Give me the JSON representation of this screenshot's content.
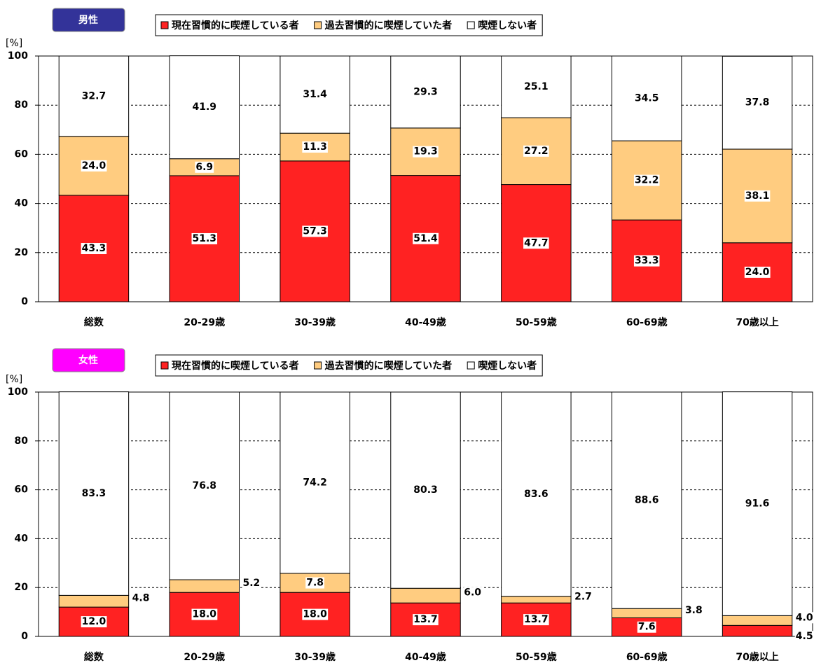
{
  "chart_data": [
    {
      "type": "bar",
      "stacked": true,
      "title": "男性",
      "title_color": "#333399",
      "ylabel": "[%]",
      "categories": [
        "総数",
        "20-29歳",
        "30-39歳",
        "40-49歳",
        "50-59歳",
        "60-69歳",
        "70歳以上"
      ],
      "series": [
        {
          "name": "現在習慣的に喫煙している者",
          "color": "#ff2222",
          "values": [
            43.3,
            51.3,
            57.3,
            51.4,
            47.7,
            33.3,
            24.0
          ],
          "value_labels": [
            "43.3",
            "51.3",
            "57.3",
            "51.4",
            "47.7",
            "33.3",
            "24.0"
          ]
        },
        {
          "name": "過去習慣的に喫煙していた者",
          "color": "#ffcc80",
          "values": [
            24.0,
            6.9,
            11.3,
            19.3,
            27.2,
            32.2,
            38.1
          ],
          "value_labels": [
            "24.0",
            "6.9",
            "11.3",
            "19.3",
            "27.2",
            "32.2",
            "38.1"
          ]
        },
        {
          "name": "喫煙しない者",
          "color": "#ffffff",
          "values": [
            32.7,
            41.9,
            31.4,
            29.3,
            25.1,
            34.5,
            37.8
          ],
          "value_labels": [
            "32.7",
            "41.9",
            "31.4",
            "29.3",
            "25.1",
            "34.5",
            "37.8"
          ]
        }
      ],
      "ylim": [
        0,
        100
      ],
      "yticks": [
        0,
        20,
        40,
        60,
        80,
        100
      ],
      "grid": true
    },
    {
      "type": "bar",
      "stacked": true,
      "title": "女性",
      "title_color": "#ff00ff",
      "ylabel": "[%]",
      "categories": [
        "総数",
        "20-29歳",
        "30-39歳",
        "40-49歳",
        "50-59歳",
        "60-69歳",
        "70歳以上"
      ],
      "series": [
        {
          "name": "現在習慣的に喫煙している者",
          "color": "#ff2222",
          "values": [
            12.0,
            18.0,
            18.0,
            13.7,
            13.7,
            7.6,
            4.5
          ],
          "value_labels": [
            "12.0",
            "18.0",
            "18.0",
            "13.7",
            "13.7",
            "7.6",
            "4.5"
          ]
        },
        {
          "name": "過去習慣的に喫煙していた者",
          "color": "#ffcc80",
          "values": [
            4.8,
            5.2,
            7.8,
            6.0,
            2.7,
            3.8,
            4.0
          ],
          "value_labels": [
            "4.8",
            "5.2",
            "7.8",
            "6.0",
            "2.7",
            "3.8",
            "4.0"
          ]
        },
        {
          "name": "喫煙しない者",
          "color": "#ffffff",
          "values": [
            83.3,
            76.8,
            74.2,
            80.3,
            83.6,
            88.6,
            91.6
          ],
          "value_labels": [
            "83.3",
            "76.8",
            "74.2",
            "80.3",
            "83.6",
            "88.6",
            "91.6"
          ]
        }
      ],
      "ylim": [
        0,
        100
      ],
      "yticks": [
        0,
        20,
        40,
        60,
        80,
        100
      ],
      "grid": true
    }
  ]
}
